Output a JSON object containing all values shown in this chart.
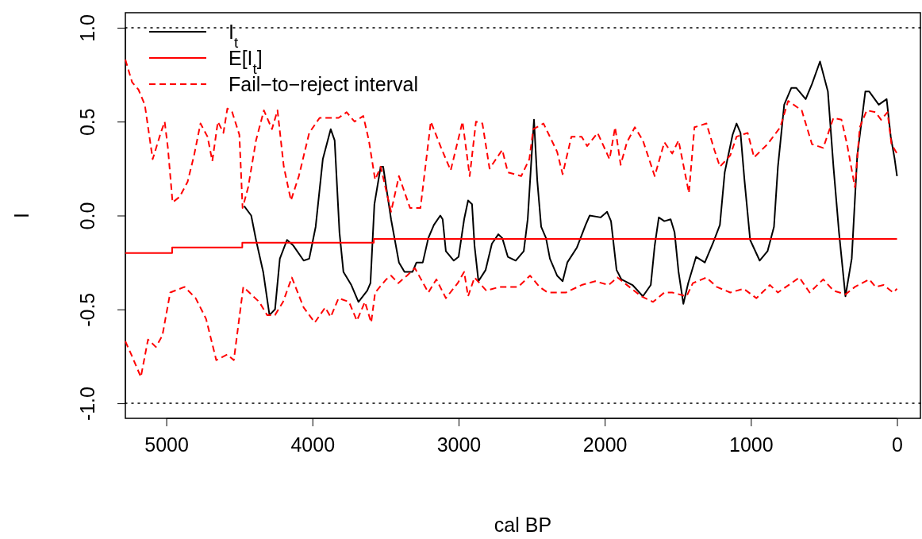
{
  "chart_data": {
    "type": "line",
    "xlabel": "cal BP",
    "ylabel": "I",
    "xlim": [
      5280,
      -160
    ],
    "ylim": [
      -1.08,
      1.08
    ],
    "xticks": [
      5000,
      4000,
      3000,
      2000,
      1000,
      0
    ],
    "yticks": [
      {
        "value": -1,
        "label": "-1.0"
      },
      {
        "value": -0.5,
        "label": "-0.5"
      },
      {
        "value": 0,
        "label": "0.0"
      },
      {
        "value": 0.5,
        "label": "0.5"
      },
      {
        "value": 1,
        "label": "1.0"
      }
    ],
    "legend": "top left",
    "grid": false,
    "ref_lines": [
      {
        "axis": "y",
        "value": 1,
        "color": "#000000",
        "line_style": "dotted"
      },
      {
        "axis": "y",
        "value": -1,
        "color": "#000000",
        "line_style": "dotted"
      }
    ],
    "series": [
      {
        "name": "I$_{t}$",
        "color": "#000000",
        "line_style": "solid",
        "x": [
          4467,
          4419,
          4386,
          4337,
          4294,
          4256,
          4223,
          4174,
          4131,
          4060,
          4022,
          3978,
          3929,
          3875,
          3848,
          3815,
          3788,
          3734,
          3685,
          3625,
          3603,
          3576,
          3533,
          3516,
          3462,
          3408,
          3370,
          3315,
          3288,
          3245,
          3207,
          3169,
          3125,
          3109,
          3087,
          3033,
          3000,
          2962,
          2935,
          2908,
          2891,
          2864,
          2815,
          2772,
          2728,
          2701,
          2663,
          2609,
          2554,
          2527,
          2500,
          2484,
          2462,
          2435,
          2402,
          2375,
          2326,
          2288,
          2256,
          2190,
          2131,
          2103,
          2027,
          1984,
          1957,
          1919,
          1886,
          1810,
          1739,
          1685,
          1658,
          1630,
          1592,
          1549,
          1522,
          1495,
          1462,
          1429,
          1375,
          1315,
          1261,
          1212,
          1179,
          1125,
          1098,
          1071,
          1044,
          1005,
          940,
          886,
          842,
          815,
          772,
          723,
          690,
          625,
          582,
          527,
          473,
          435,
          397,
          353,
          310,
          272,
          217,
          190,
          125,
          71,
          43,
          16,
          0
        ],
        "values": [
          0.05,
          0.0,
          -0.13,
          -0.3,
          -0.53,
          -0.5,
          -0.23,
          -0.13,
          -0.16,
          -0.24,
          -0.23,
          -0.06,
          0.3,
          0.46,
          0.4,
          -0.09,
          -0.3,
          -0.37,
          -0.46,
          -0.4,
          -0.36,
          0.06,
          0.26,
          0.26,
          -0.02,
          -0.25,
          -0.3,
          -0.3,
          -0.25,
          -0.25,
          -0.12,
          -0.05,
          0.0,
          -0.02,
          -0.19,
          -0.24,
          -0.22,
          -0.02,
          0.08,
          0.06,
          -0.16,
          -0.35,
          -0.29,
          -0.15,
          -0.1,
          -0.12,
          -0.22,
          -0.24,
          -0.19,
          -0.02,
          0.32,
          0.51,
          0.19,
          -0.06,
          -0.12,
          -0.23,
          -0.32,
          -0.35,
          -0.25,
          -0.17,
          -0.05,
          0.0,
          -0.01,
          0.02,
          -0.03,
          -0.29,
          -0.34,
          -0.37,
          -0.43,
          -0.37,
          -0.16,
          -0.01,
          -0.03,
          -0.02,
          -0.09,
          -0.3,
          -0.47,
          -0.36,
          -0.22,
          -0.25,
          -0.15,
          -0.05,
          0.23,
          0.43,
          0.49,
          0.44,
          0.19,
          -0.13,
          -0.24,
          -0.19,
          -0.06,
          0.26,
          0.59,
          0.68,
          0.68,
          0.62,
          0.7,
          0.82,
          0.66,
          0.26,
          -0.09,
          -0.43,
          -0.23,
          0.32,
          0.66,
          0.66,
          0.59,
          0.62,
          0.42,
          0.3,
          0.21
        ]
      },
      {
        "name": "E[I$_{t}$]",
        "type": "step",
        "color": "#ff0000",
        "line_style": "solid",
        "x": [
          5280,
          4960,
          4480,
          3580,
          0
        ],
        "values": [
          -0.2,
          -0.17,
          -0.145,
          -0.125,
          -0.125
        ]
      },
      {
        "name": "Fail−to−reject interval",
        "color": "#ff0000",
        "line_style": "dashed",
        "x": [
          5280,
          5234,
          5190,
          5147,
          5093,
          5038,
          5011,
          4989,
          4957,
          4908,
          4854,
          4810,
          4766,
          4718,
          4685,
          4647,
          4609,
          4582,
          4549,
          4500,
          4478,
          4440,
          4386,
          4332,
          4277,
          4239,
          4196,
          4147,
          4093,
          4022,
          3951,
          3875,
          3821,
          3766,
          3712,
          3652,
          3614,
          3571,
          3533,
          3462,
          3408,
          3332,
          3261,
          3190,
          3114,
          3054,
          2973,
          2924,
          2881,
          2837,
          2788,
          2701,
          2663,
          2571,
          2516,
          2489,
          2419,
          2326,
          2288,
          2228,
          2158,
          2120,
          2049,
          1967,
          1929,
          1891,
          1848,
          1794,
          1739,
          1658,
          1592,
          1538,
          1495,
          1424,
          1386,
          1304,
          1250,
          1212,
          1141,
          1098,
          1022,
          978,
          886,
          799,
          745,
          652,
          582,
          505,
          435,
          380,
          342,
          288,
          255,
          207,
          147,
          109,
          65,
          38,
          0
        ],
        "values": [
          0.83,
          0.71,
          0.67,
          0.59,
          0.3,
          0.44,
          0.5,
          0.36,
          0.07,
          0.1,
          0.18,
          0.32,
          0.49,
          0.42,
          0.29,
          0.5,
          0.44,
          0.57,
          0.55,
          0.43,
          0.04,
          0.15,
          0.4,
          0.56,
          0.46,
          0.56,
          0.26,
          0.08,
          0.21,
          0.44,
          0.52,
          0.52,
          0.52,
          0.55,
          0.5,
          0.53,
          0.4,
          0.19,
          0.26,
          0.02,
          0.21,
          0.04,
          0.04,
          0.5,
          0.35,
          0.24,
          0.5,
          0.21,
          0.5,
          0.49,
          0.25,
          0.35,
          0.23,
          0.21,
          0.3,
          0.46,
          0.49,
          0.34,
          0.22,
          0.42,
          0.42,
          0.37,
          0.44,
          0.3,
          0.47,
          0.27,
          0.39,
          0.47,
          0.4,
          0.21,
          0.39,
          0.33,
          0.4,
          0.12,
          0.47,
          0.49,
          0.35,
          0.26,
          0.32,
          0.42,
          0.44,
          0.31,
          0.38,
          0.47,
          0.61,
          0.56,
          0.38,
          0.36,
          0.52,
          0.51,
          0.38,
          0.15,
          0.47,
          0.56,
          0.55,
          0.51,
          0.55,
          0.38,
          0.33
        ]
      },
      {
        "color": "#ff0000",
        "line_style": "dashed",
        "x": [
          5280,
          5234,
          5174,
          5125,
          5071,
          5027,
          4973,
          4875,
          4799,
          4728,
          4658,
          4582,
          4538,
          4473,
          4419,
          4364,
          4310,
          4256,
          4201,
          4141,
          4060,
          3984,
          3913,
          3875,
          3821,
          3750,
          3696,
          3641,
          3598,
          3571,
          3495,
          3462,
          3413,
          3353,
          3299,
          3207,
          3152,
          3087,
          3006,
          2962,
          2935,
          2891,
          2810,
          2718,
          2592,
          2511,
          2446,
          2391,
          2266,
          2158,
          2065,
          1973,
          1913,
          1832,
          1750,
          1669,
          1592,
          1538,
          1440,
          1397,
          1304,
          1234,
          1141,
          1049,
          962,
          870,
          815,
          668,
          598,
          505,
          435,
          353,
          288,
          190,
          147,
          92,
          27,
          0
        ],
        "values": [
          -0.67,
          -0.75,
          -0.86,
          -0.66,
          -0.7,
          -0.64,
          -0.41,
          -0.38,
          -0.44,
          -0.55,
          -0.77,
          -0.74,
          -0.77,
          -0.38,
          -0.42,
          -0.46,
          -0.53,
          -0.53,
          -0.46,
          -0.33,
          -0.49,
          -0.57,
          -0.49,
          -0.54,
          -0.44,
          -0.46,
          -0.56,
          -0.46,
          -0.57,
          -0.41,
          -0.34,
          -0.32,
          -0.36,
          -0.32,
          -0.28,
          -0.41,
          -0.34,
          -0.44,
          -0.36,
          -0.3,
          -0.43,
          -0.33,
          -0.4,
          -0.38,
          -0.38,
          -0.32,
          -0.38,
          -0.41,
          -0.41,
          -0.37,
          -0.35,
          -0.37,
          -0.33,
          -0.38,
          -0.43,
          -0.46,
          -0.41,
          -0.41,
          -0.43,
          -0.36,
          -0.33,
          -0.38,
          -0.41,
          -0.39,
          -0.44,
          -0.37,
          -0.41,
          -0.33,
          -0.41,
          -0.34,
          -0.4,
          -0.42,
          -0.38,
          -0.34,
          -0.38,
          -0.37,
          -0.41,
          -0.39
        ]
      }
    ]
  }
}
